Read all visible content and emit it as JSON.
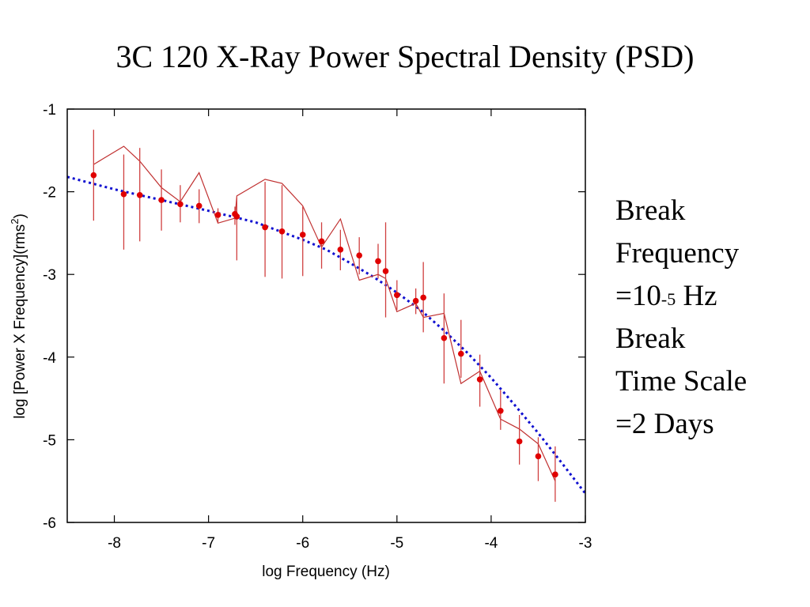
{
  "title": "3C 120 X-Ray Power Spectral Density (PSD)",
  "annotation": {
    "break_label": "Break",
    "frequency_label": "Frequency",
    "frequency_prefix": "=10",
    "frequency_exponent": "-5",
    "frequency_unit": " Hz",
    "break_label2": "Break",
    "timescale_label": "Time Scale",
    "timescale_value": "=2 Days"
  },
  "chart_data": {
    "type": "scatter",
    "xlabel": "log Frequency (Hz)",
    "ylabel_main": "log [Power X Frequency](rms",
    "ylabel_sup": "2",
    "ylabel_end": ")",
    "xlim": [
      -8.5,
      -3
    ],
    "ylim": [
      -6,
      -1
    ],
    "xticks": [
      -8,
      -7,
      -6,
      -5,
      -4,
      -3
    ],
    "yticks": [
      -1,
      -2,
      -3,
      -4,
      -5,
      -6
    ],
    "grid": false,
    "colors": {
      "points": "#e00000",
      "errorbars": "#d04040",
      "model": "#c03030",
      "fit": "#1010d0",
      "axes": "#000000"
    },
    "points": [
      {
        "x": -8.22,
        "y": -1.8,
        "lo": -2.35,
        "hi": -1.25
      },
      {
        "x": -7.9,
        "y": -2.03,
        "lo": -2.7,
        "hi": -1.55
      },
      {
        "x": -7.73,
        "y": -2.04,
        "lo": -2.6,
        "hi": -1.47
      },
      {
        "x": -7.5,
        "y": -2.1,
        "lo": -2.47,
        "hi": -1.73
      },
      {
        "x": -7.3,
        "y": -2.15,
        "lo": -2.37,
        "hi": -1.92
      },
      {
        "x": -7.1,
        "y": -2.17,
        "lo": -2.38,
        "hi": -1.97
      },
      {
        "x": -6.9,
        "y": -2.28,
        "lo": -2.38,
        "hi": -2.2
      },
      {
        "x": -6.72,
        "y": -2.27,
        "lo": -2.4,
        "hi": -2.18
      },
      {
        "x": -6.7,
        "y": -2.3,
        "lo": -2.83,
        "hi": -2.07
      },
      {
        "x": -6.4,
        "y": -2.43,
        "lo": -3.03,
        "hi": -1.88
      },
      {
        "x": -6.22,
        "y": -2.48,
        "lo": -3.05,
        "hi": -1.92
      },
      {
        "x": -6.0,
        "y": -2.52,
        "lo": -3.02,
        "hi": -2.18
      },
      {
        "x": -5.8,
        "y": -2.6,
        "lo": -2.93,
        "hi": -2.37
      },
      {
        "x": -5.6,
        "y": -2.7,
        "lo": -2.95,
        "hi": -2.46
      },
      {
        "x": -5.4,
        "y": -2.77,
        "lo": -3.0,
        "hi": -2.55
      },
      {
        "x": -5.2,
        "y": -2.84,
        "lo": -3.05,
        "hi": -2.63
      },
      {
        "x": -5.12,
        "y": -2.96,
        "lo": -3.52,
        "hi": -2.37
      },
      {
        "x": -5.0,
        "y": -3.25,
        "lo": -3.43,
        "hi": -3.07
      },
      {
        "x": -4.8,
        "y": -3.32,
        "lo": -3.48,
        "hi": -3.17
      },
      {
        "x": -4.72,
        "y": -3.28,
        "lo": -3.7,
        "hi": -2.85
      },
      {
        "x": -4.5,
        "y": -3.77,
        "lo": -4.32,
        "hi": -3.23
      },
      {
        "x": -4.32,
        "y": -3.96,
        "lo": -4.25,
        "hi": -3.55
      },
      {
        "x": -4.12,
        "y": -4.27,
        "lo": -4.6,
        "hi": -3.97
      },
      {
        "x": -3.9,
        "y": -4.65,
        "lo": -4.88,
        "hi": -4.4
      },
      {
        "x": -3.7,
        "y": -5.02,
        "lo": -5.3,
        "hi": -4.7
      },
      {
        "x": -3.5,
        "y": -5.2,
        "lo": -5.5,
        "hi": -4.97
      },
      {
        "x": -3.32,
        "y": -5.42,
        "lo": -5.75,
        "hi": -5.08
      }
    ],
    "model_line": {
      "x": [
        -8.22,
        -7.9,
        -7.73,
        -7.5,
        -7.3,
        -7.1,
        -6.9,
        -6.72,
        -6.7,
        -6.4,
        -6.22,
        -6.0,
        -5.8,
        -5.6,
        -5.4,
        -5.2,
        -5.12,
        -5.0,
        -4.8,
        -4.72,
        -4.5,
        -4.32,
        -4.12,
        -3.9,
        -3.7,
        -3.5,
        -3.32
      ],
      "y": [
        -1.67,
        -1.45,
        -1.63,
        -1.95,
        -2.12,
        -1.77,
        -2.38,
        -2.32,
        -2.05,
        -1.85,
        -1.9,
        -2.17,
        -2.67,
        -2.33,
        -3.07,
        -3.0,
        -3.05,
        -3.45,
        -3.35,
        -3.52,
        -3.47,
        -4.32,
        -4.17,
        -4.75,
        -4.87,
        -5.05,
        -5.5
      ]
    },
    "fit_line": {
      "x": [
        -8.5,
        -8.0,
        -7.5,
        -7.0,
        -6.5,
        -6.0,
        -5.75,
        -5.5,
        -5.25,
        -5.0,
        -4.75,
        -4.5,
        -4.25,
        -4.0,
        -3.75,
        -3.5,
        -3.25,
        -3.0
      ],
      "y": [
        -1.82,
        -1.97,
        -2.1,
        -2.23,
        -2.37,
        -2.58,
        -2.7,
        -2.86,
        -3.03,
        -3.22,
        -3.43,
        -3.68,
        -3.95,
        -4.25,
        -4.58,
        -4.92,
        -5.28,
        -5.65
      ]
    }
  }
}
